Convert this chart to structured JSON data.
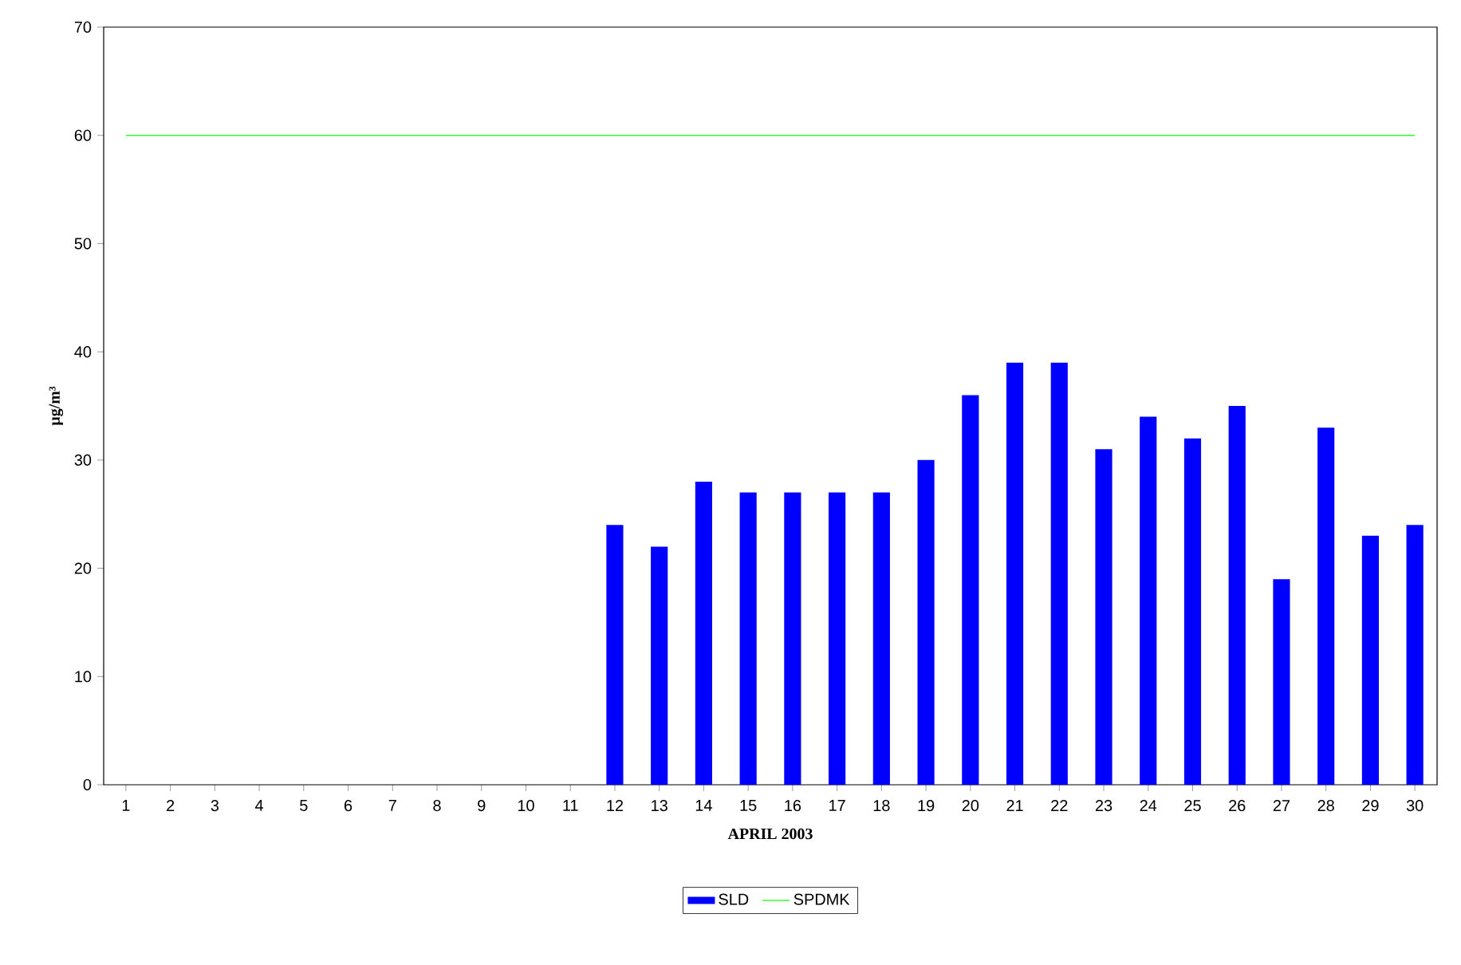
{
  "chart_data": {
    "type": "bar",
    "xlabel": "APRIL 2003",
    "ylabel": "µg/m³",
    "categories": [
      "1",
      "2",
      "3",
      "4",
      "5",
      "6",
      "7",
      "8",
      "9",
      "10",
      "11",
      "12",
      "13",
      "14",
      "15",
      "16",
      "17",
      "18",
      "19",
      "20",
      "21",
      "22",
      "23",
      "24",
      "25",
      "26",
      "27",
      "28",
      "29",
      "30"
    ],
    "series": [
      {
        "name": "SLD",
        "color": "#0000ff",
        "values": [
          null,
          null,
          null,
          null,
          null,
          null,
          null,
          null,
          null,
          null,
          null,
          24,
          22,
          28,
          27,
          27,
          27,
          27,
          30,
          36,
          39,
          39,
          31,
          34,
          32,
          35,
          19,
          33,
          23,
          24
        ]
      },
      {
        "name": "SPDMK",
        "type": "line",
        "color": "#33ff33",
        "values": [
          60,
          60,
          60,
          60,
          60,
          60,
          60,
          60,
          60,
          60,
          60,
          60,
          60,
          60,
          60,
          60,
          60,
          60,
          60,
          60,
          60,
          60,
          60,
          60,
          60,
          60,
          60,
          60,
          60,
          60
        ]
      }
    ],
    "ylim": [
      0,
      70
    ],
    "yticks": [
      0,
      10,
      20,
      30,
      40,
      50,
      60,
      70
    ],
    "grid": false,
    "legend": "bottom"
  }
}
